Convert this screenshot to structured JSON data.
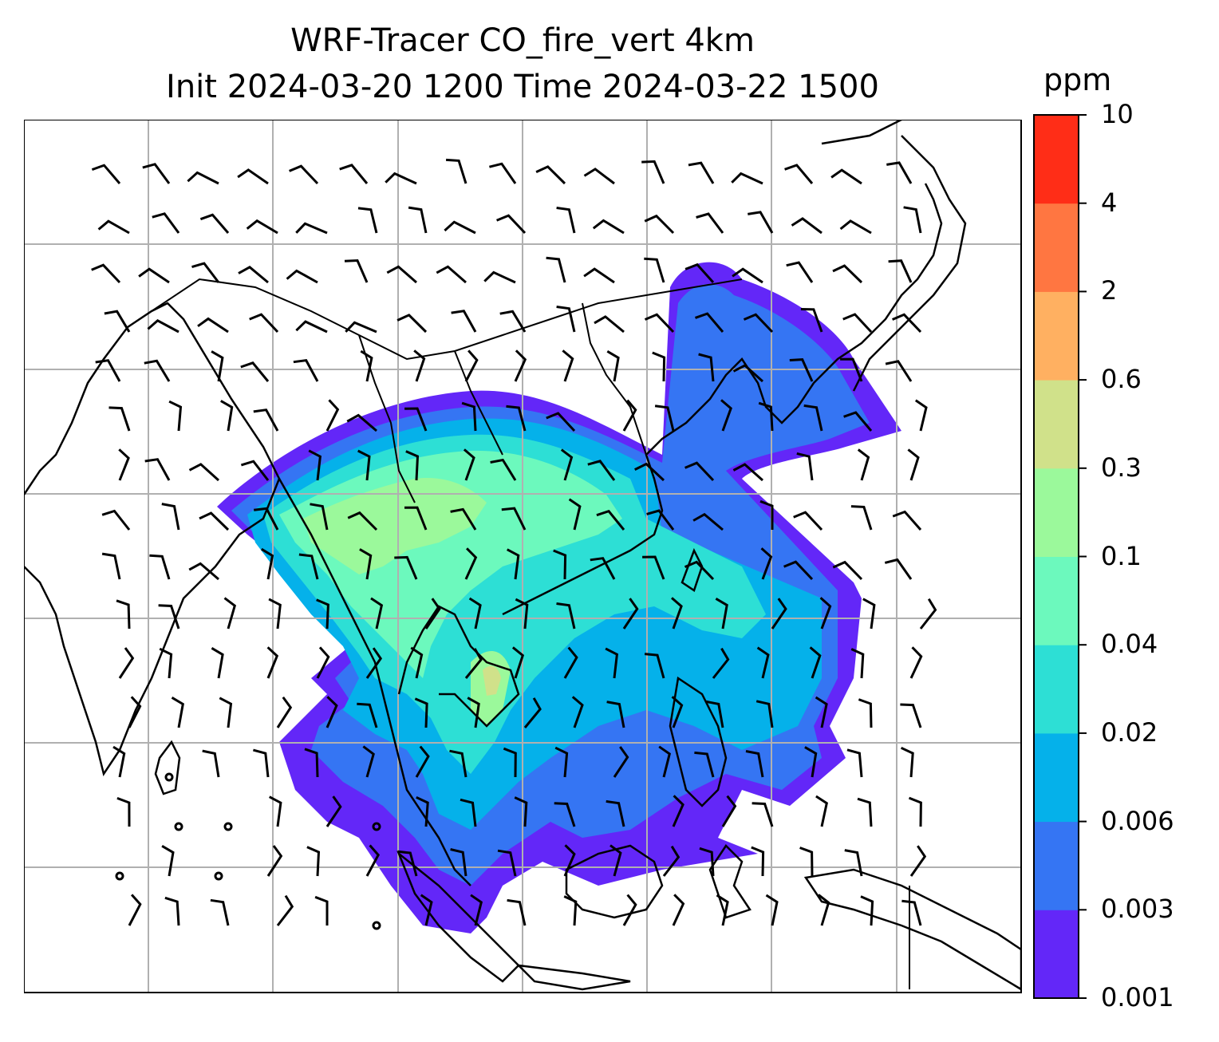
{
  "title": {
    "line1": "WRF-Tracer CO_fire_vert 4km",
    "line2": "Init 2024-03-20 1200 Time 2024-03-22 1500"
  },
  "colorbar": {
    "unit": "ppm",
    "levels": [
      "0.001",
      "0.003",
      "0.006",
      "0.02",
      "0.04",
      "0.1",
      "0.3",
      "0.6",
      "2",
      "4",
      "10"
    ],
    "colors": [
      "#6327f8",
      "#3575f3",
      "#05b1ea",
      "#2ddfd5",
      "#6cf9bd",
      "#9bf99b",
      "#d0e18a",
      "#ffb061",
      "#ff7641",
      "#ff2d17"
    ]
  },
  "map": {
    "gridlines": true,
    "coastline_color": "#000000",
    "grid_color": "#b0b0b0",
    "wind_barbs": true
  }
}
